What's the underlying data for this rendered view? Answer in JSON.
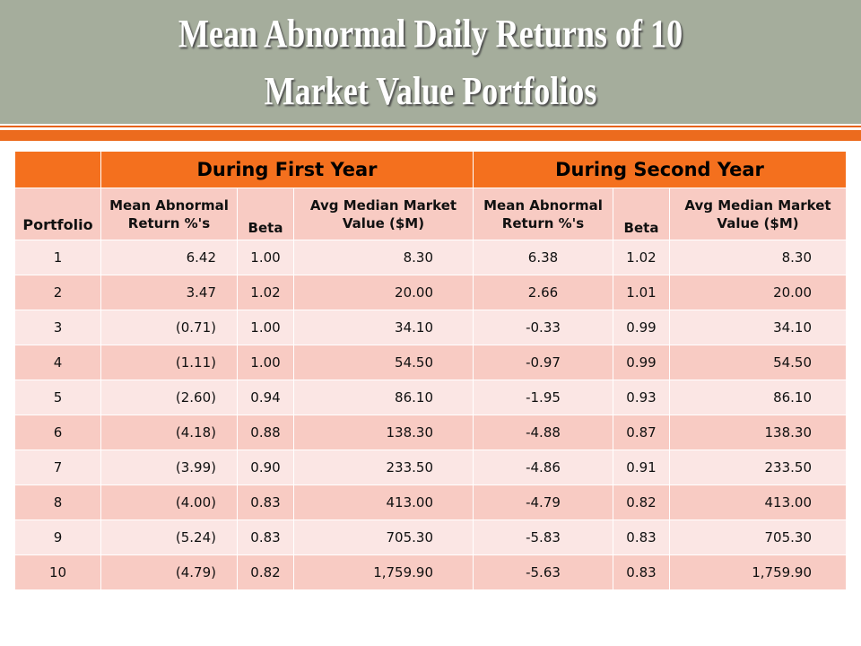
{
  "slide": {
    "title_line1": "Mean Abnormal Daily Returns of 10",
    "title_line2": "Market Value Portfolios"
  },
  "table": {
    "group_headers": [
      "During First Year",
      "During Second Year"
    ],
    "column_headers": {
      "portfolio": "Portfolio",
      "mean_abnormal_line1": "Mean Abnormal",
      "mean_abnormal_line2": "Return %'s",
      "beta": "Beta",
      "avg_median_line1": "Avg Median Market",
      "avg_median_line2": "Value ($M)"
    },
    "rows": [
      {
        "portfolio": "1",
        "y1_return": "6.42",
        "y1_beta": "1.00",
        "y1_value": "8.30",
        "y2_return": "6.38",
        "y2_beta": "1.02",
        "y2_value": "8.30"
      },
      {
        "portfolio": "2",
        "y1_return": "3.47",
        "y1_beta": "1.02",
        "y1_value": "20.00",
        "y2_return": "2.66",
        "y2_beta": "1.01",
        "y2_value": "20.00"
      },
      {
        "portfolio": "3",
        "y1_return": "(0.71)",
        "y1_beta": "1.00",
        "y1_value": "34.10",
        "y2_return": "-0.33",
        "y2_beta": "0.99",
        "y2_value": "34.10"
      },
      {
        "portfolio": "4",
        "y1_return": "(1.11)",
        "y1_beta": "1.00",
        "y1_value": "54.50",
        "y2_return": "-0.97",
        "y2_beta": "0.99",
        "y2_value": "54.50"
      },
      {
        "portfolio": "5",
        "y1_return": "(2.60)",
        "y1_beta": "0.94",
        "y1_value": "86.10",
        "y2_return": "-1.95",
        "y2_beta": "0.93",
        "y2_value": "86.10"
      },
      {
        "portfolio": "6",
        "y1_return": "(4.18)",
        "y1_beta": "0.88",
        "y1_value": "138.30",
        "y2_return": "-4.88",
        "y2_beta": "0.87",
        "y2_value": "138.30"
      },
      {
        "portfolio": "7",
        "y1_return": "(3.99)",
        "y1_beta": "0.90",
        "y1_value": "233.50",
        "y2_return": "-4.86",
        "y2_beta": "0.91",
        "y2_value": "233.50"
      },
      {
        "portfolio": "8",
        "y1_return": "(4.00)",
        "y1_beta": "0.83",
        "y1_value": "413.00",
        "y2_return": "-4.79",
        "y2_beta": "0.82",
        "y2_value": "413.00"
      },
      {
        "portfolio": "9",
        "y1_return": "(5.24)",
        "y1_beta": "0.83",
        "y1_value": "705.30",
        "y2_return": "-5.83",
        "y2_beta": "0.83",
        "y2_value": "705.30"
      },
      {
        "portfolio": "10",
        "y1_return": "(4.79)",
        "y1_beta": "0.82",
        "y1_value": "1,759.90",
        "y2_return": "-5.63",
        "y2_beta": "0.83",
        "y2_value": "1,759.90"
      }
    ]
  },
  "colors": {
    "title_bar": "#a5ad9c",
    "accent_orange": "#ec6b1e",
    "row_dark": "#f8cbc3",
    "row_light": "#fbe6e4"
  }
}
